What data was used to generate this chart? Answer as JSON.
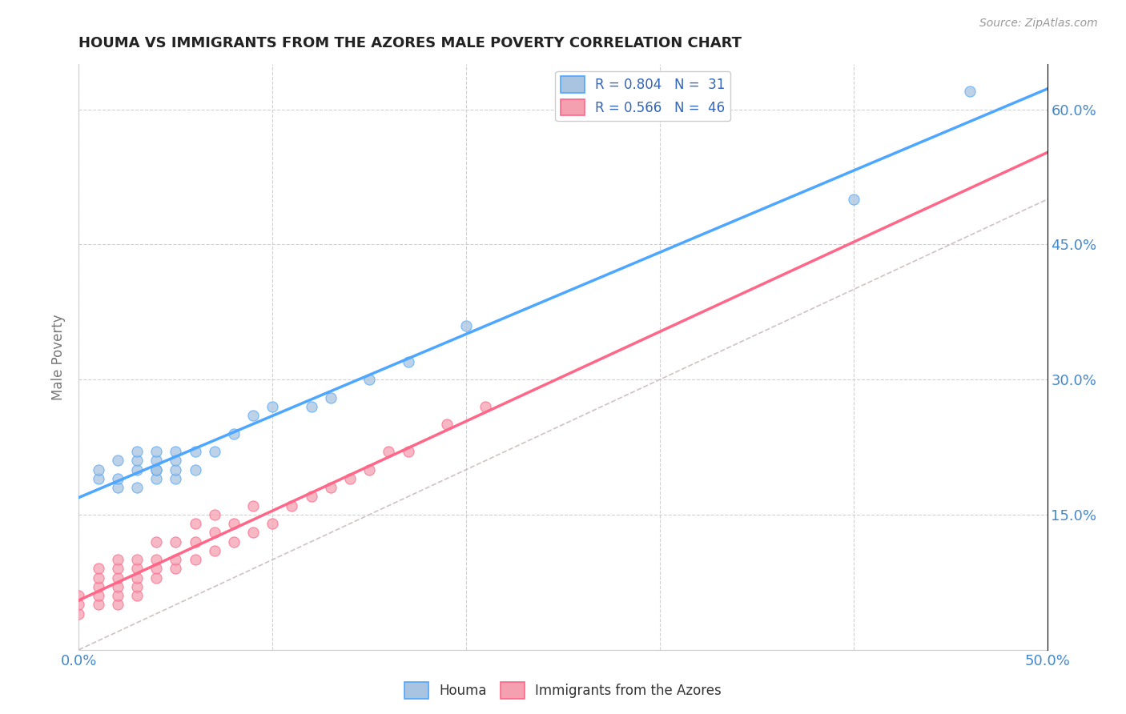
{
  "title": "HOUMA VS IMMIGRANTS FROM THE AZORES MALE POVERTY CORRELATION CHART",
  "source": "Source: ZipAtlas.com",
  "ylabel": "Male Poverty",
  "xlim": [
    0,
    0.5
  ],
  "ylim": [
    0,
    0.65
  ],
  "xticks": [
    0.0,
    0.1,
    0.2,
    0.3,
    0.4,
    0.5
  ],
  "xtick_labels": [
    "0.0%",
    "",
    "",
    "",
    "",
    "50.0%"
  ],
  "ytick_labels_right": [
    "",
    "15.0%",
    "30.0%",
    "45.0%",
    "60.0%"
  ],
  "yticks_right": [
    0.0,
    0.15,
    0.3,
    0.45,
    0.6
  ],
  "color_houma": "#a8c4e0",
  "color_azores": "#f4a0b0",
  "color_line_houma": "#4da6ff",
  "color_line_azores": "#ff6688",
  "color_diagonal": "#ccbbbb",
  "background_color": "#ffffff",
  "grid_color": "#d0d0d0",
  "title_color": "#3366bb",
  "axis_label_color": "#777777",
  "tick_color_blue": "#4488cc",
  "houma_x": [
    0.01,
    0.01,
    0.02,
    0.02,
    0.02,
    0.03,
    0.03,
    0.03,
    0.03,
    0.04,
    0.04,
    0.04,
    0.04,
    0.04,
    0.05,
    0.05,
    0.05,
    0.05,
    0.06,
    0.06,
    0.07,
    0.08,
    0.09,
    0.1,
    0.12,
    0.13,
    0.15,
    0.17,
    0.2,
    0.4,
    0.46
  ],
  "houma_y": [
    0.19,
    0.2,
    0.18,
    0.19,
    0.21,
    0.18,
    0.2,
    0.21,
    0.22,
    0.19,
    0.2,
    0.2,
    0.21,
    0.22,
    0.19,
    0.2,
    0.21,
    0.22,
    0.2,
    0.22,
    0.22,
    0.24,
    0.26,
    0.27,
    0.27,
    0.28,
    0.3,
    0.32,
    0.36,
    0.5,
    0.62
  ],
  "azores_x": [
    0.0,
    0.0,
    0.0,
    0.01,
    0.01,
    0.01,
    0.01,
    0.01,
    0.02,
    0.02,
    0.02,
    0.02,
    0.02,
    0.02,
    0.03,
    0.03,
    0.03,
    0.03,
    0.03,
    0.04,
    0.04,
    0.04,
    0.04,
    0.05,
    0.05,
    0.05,
    0.06,
    0.06,
    0.06,
    0.07,
    0.07,
    0.07,
    0.08,
    0.08,
    0.09,
    0.09,
    0.1,
    0.11,
    0.12,
    0.13,
    0.14,
    0.15,
    0.16,
    0.17,
    0.19,
    0.21
  ],
  "azores_y": [
    0.04,
    0.05,
    0.06,
    0.05,
    0.06,
    0.07,
    0.08,
    0.09,
    0.05,
    0.06,
    0.07,
    0.08,
    0.09,
    0.1,
    0.06,
    0.07,
    0.08,
    0.09,
    0.1,
    0.08,
    0.09,
    0.1,
    0.12,
    0.09,
    0.1,
    0.12,
    0.1,
    0.12,
    0.14,
    0.11,
    0.13,
    0.15,
    0.12,
    0.14,
    0.13,
    0.16,
    0.14,
    0.16,
    0.17,
    0.18,
    0.19,
    0.2,
    0.22,
    0.22,
    0.25,
    0.27
  ]
}
